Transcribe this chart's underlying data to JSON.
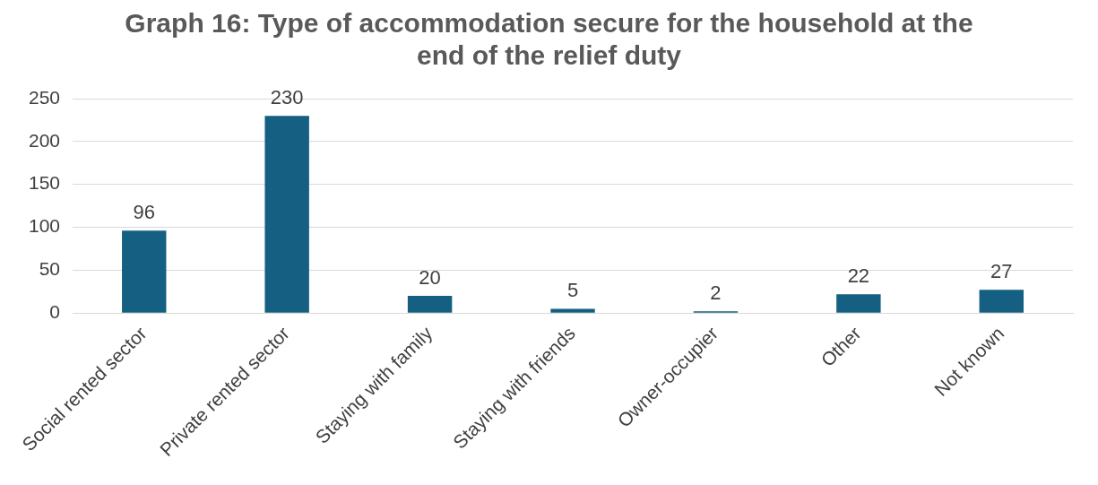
{
  "chart_data": {
    "type": "bar",
    "title": "Graph 16: Type of accommodation secure for the household at the end of the relief duty",
    "categories": [
      "Social rented sector",
      "Private rented sector",
      "Staying with family",
      "Staying with friends",
      "Owner-occupier",
      "Other",
      "Not known"
    ],
    "values": [
      96,
      230,
      20,
      5,
      2,
      22,
      27
    ],
    "color": "#156082",
    "ylim": [
      0,
      250
    ],
    "yticks": [
      0,
      50,
      100,
      150,
      200,
      250
    ],
    "grid": "y",
    "data_labels": true,
    "legend": false
  }
}
